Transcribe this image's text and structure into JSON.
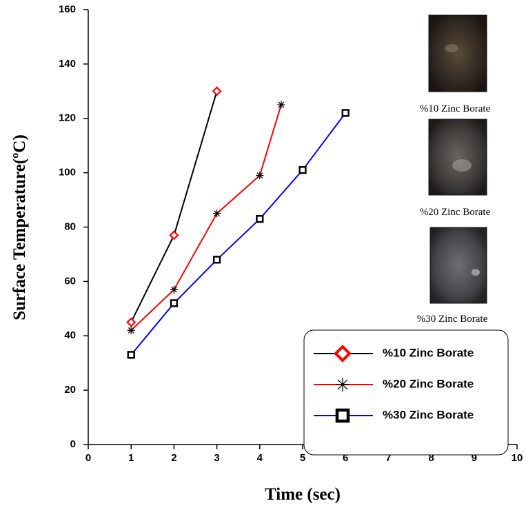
{
  "chart_data": {
    "type": "line",
    "x_label": "Time (sec)",
    "y_label": "Surface Temperature(ºC)",
    "xlim": [
      0,
      10
    ],
    "xticks": [
      0,
      1,
      2,
      3,
      4,
      5,
      6,
      7,
      8,
      9,
      10
    ],
    "ylim": [
      0,
      160
    ],
    "yticks": [
      0,
      20,
      40,
      60,
      80,
      100,
      120,
      140,
      160
    ],
    "legend": "bottom-right",
    "series": [
      {
        "name": "%10 Zinc Borate",
        "color": "#000000",
        "marker": "diamond",
        "marker_color": "#ff0000",
        "x": [
          1,
          2,
          3
        ],
        "values": [
          45,
          77,
          130
        ]
      },
      {
        "name": "%20 Zinc Borate",
        "color": "#ff0000",
        "marker": "star",
        "marker_color": "#000000",
        "x": [
          1,
          2,
          3,
          4,
          4.5
        ],
        "values": [
          42,
          57,
          85,
          99,
          125
        ]
      },
      {
        "name": "%30 Zinc Borate",
        "color": "#0000ff",
        "marker": "square",
        "marker_color": "#000000",
        "x": [
          1,
          2,
          3,
          4,
          5,
          6
        ],
        "values": [
          33,
          52,
          68,
          83,
          101,
          122
        ]
      }
    ],
    "insets": [
      {
        "caption": "%10 Zinc Borate"
      },
      {
        "caption": "%20 Zinc Borate"
      },
      {
        "caption": "%30 Zinc Borate"
      }
    ]
  }
}
